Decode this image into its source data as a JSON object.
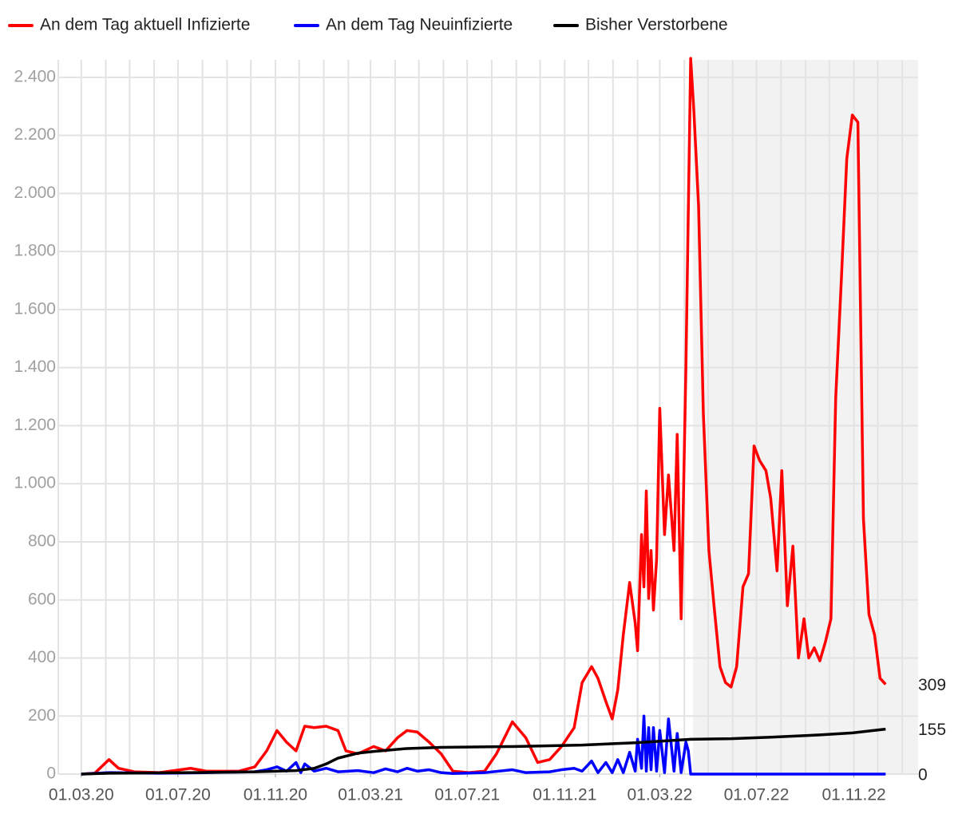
{
  "chart_data": {
    "type": "line",
    "xlim": [
      "2020-02-01",
      "2023-01-21"
    ],
    "ylim": [
      0,
      2460
    ],
    "yticks": [
      0,
      200,
      400,
      600,
      800,
      {
        "value": 1000,
        "label": "1.000"
      },
      {
        "value": 1200,
        "label": "1.200"
      },
      {
        "value": 1400,
        "label": "1.400"
      },
      {
        "value": 1600,
        "label": "1.600"
      },
      {
        "value": 1800,
        "label": "1.800"
      },
      {
        "value": 2000,
        "label": "2.000"
      },
      {
        "value": 2200,
        "label": "2.200"
      },
      {
        "value": 2400,
        "label": "2.400"
      }
    ],
    "xticks": [
      {
        "value": "2020-03-01",
        "label": "01.03.20"
      },
      {
        "value": "2020-07-01",
        "label": "01.07.20"
      },
      {
        "value": "2020-11-01",
        "label": "01.11.20"
      },
      {
        "value": "2021-03-01",
        "label": "01.03.21"
      },
      {
        "value": "2021-07-01",
        "label": "01.07.21"
      },
      {
        "value": "2021-11-01",
        "label": "01.11.21"
      },
      {
        "value": "2022-03-01",
        "label": "01.03.22"
      },
      {
        "value": "2022-07-01",
        "label": "01.07.22"
      },
      {
        "value": "2022-11-01",
        "label": "01.11.22"
      }
    ],
    "x_grid": [
      "2020-02-01",
      "2020-03-01",
      "2020-04-01",
      "2020-05-01",
      "2020-06-01",
      "2020-07-01",
      "2020-08-01",
      "2020-09-01",
      "2020-10-01",
      "2020-11-01",
      "2020-12-01",
      "2021-01-01",
      "2021-02-01",
      "2021-03-01",
      "2021-04-01",
      "2021-05-01",
      "2021-06-01",
      "2021-07-01",
      "2021-08-01",
      "2021-09-01",
      "2021-10-01",
      "2021-11-01",
      "2021-12-01",
      "2022-01-01",
      "2022-02-01",
      "2022-03-01",
      "2022-04-01",
      "2022-05-01",
      "2022-06-01",
      "2022-07-01",
      "2022-08-01",
      "2022-09-01",
      "2022-10-01",
      "2022-11-01",
      "2022-12-01",
      "2023-01-01"
    ],
    "grid": true,
    "shaded_from": "2022-04-12",
    "legend": "top",
    "series": [
      {
        "name": "An dem Tag aktuell Infizierte",
        "color": "#ff0000",
        "x": [
          "2020-03-01",
          "2020-03-18",
          "2020-04-05",
          "2020-04-17",
          "2020-05-07",
          "2020-06-07",
          "2020-07-17",
          "2020-08-06",
          "2020-09-16",
          "2020-10-06",
          "2020-10-21",
          "2020-11-03",
          "2020-11-15",
          "2020-11-27",
          "2020-12-08",
          "2020-12-20",
          "2021-01-04",
          "2021-01-19",
          "2021-01-29",
          "2021-02-13",
          "2021-03-05",
          "2021-03-20",
          "2021-04-04",
          "2021-04-16",
          "2021-04-29",
          "2021-05-14",
          "2021-05-29",
          "2021-06-13",
          "2021-07-03",
          "2021-07-23",
          "2021-08-07",
          "2021-08-27",
          "2021-09-13",
          "2021-09-28",
          "2021-10-13",
          "2021-10-28",
          "2021-11-13",
          "2021-11-23",
          "2021-12-05",
          "2021-12-13",
          "2021-12-23",
          "2021-12-31",
          "2022-01-07",
          "2022-01-14",
          "2022-01-22",
          "2022-01-29",
          "2022-02-01",
          "2022-02-06",
          "2022-02-09",
          "2022-02-12",
          "2022-02-15",
          "2022-02-18",
          "2022-02-21",
          "2022-02-25",
          "2022-03-01",
          "2022-03-07",
          "2022-03-12",
          "2022-03-19",
          "2022-03-23",
          "2022-03-28",
          "2022-04-03",
          "2022-04-09",
          "2022-04-13",
          "2022-04-19",
          "2022-04-25",
          "2022-05-02",
          "2022-05-09",
          "2022-05-16",
          "2022-05-23",
          "2022-05-30",
          "2022-06-06",
          "2022-06-14",
          "2022-06-21",
          "2022-06-28",
          "2022-07-05",
          "2022-07-13",
          "2022-07-19",
          "2022-07-27",
          "2022-08-02",
          "2022-08-09",
          "2022-08-16",
          "2022-08-23",
          "2022-08-30",
          "2022-09-05",
          "2022-09-12",
          "2022-09-19",
          "2022-09-26",
          "2022-10-03",
          "2022-10-09",
          "2022-10-16",
          "2022-10-23",
          "2022-10-30",
          "2022-11-06",
          "2022-11-13",
          "2022-11-20",
          "2022-11-27",
          "2022-12-04",
          "2022-12-11"
        ],
        "values": [
          0,
          3,
          50,
          20,
          8,
          5,
          20,
          10,
          10,
          25,
          80,
          150,
          110,
          80,
          165,
          160,
          165,
          150,
          80,
          70,
          95,
          80,
          125,
          150,
          145,
          110,
          70,
          10,
          5,
          10,
          70,
          180,
          125,
          40,
          50,
          95,
          160,
          315,
          370,
          330,
          250,
          190,
          290,
          480,
          660,
          520,
          425,
          825,
          645,
          975,
          605,
          770,
          565,
          740,
          1260,
          825,
          1030,
          770,
          1170,
          535,
          1405,
          2465,
          2285,
          1955,
          1240,
          770,
          565,
          370,
          315,
          300,
          370,
          645,
          690,
          1130,
          1080,
          1045,
          950,
          700,
          1045,
          580,
          785,
          400,
          535,
          400,
          435,
          390,
          455,
          535,
          1295,
          1695,
          2120,
          2270,
          2245,
          880,
          550,
          480,
          330,
          309
        ]
      },
      {
        "name": "An dem Tag Neuinfizierte",
        "color": "#0000ff",
        "x": [
          "2020-03-01",
          "2020-04-05",
          "2020-06-07",
          "2020-08-06",
          "2020-10-06",
          "2020-10-21",
          "2020-11-03",
          "2020-11-15",
          "2020-11-27",
          "2020-12-03",
          "2020-12-08",
          "2020-12-20",
          "2021-01-04",
          "2021-01-19",
          "2021-02-13",
          "2021-03-05",
          "2021-03-20",
          "2021-04-04",
          "2021-04-16",
          "2021-04-29",
          "2021-05-14",
          "2021-05-29",
          "2021-06-13",
          "2021-07-23",
          "2021-08-27",
          "2021-09-13",
          "2021-10-13",
          "2021-10-28",
          "2021-11-13",
          "2021-11-23",
          "2021-12-05",
          "2021-12-13",
          "2021-12-23",
          "2021-12-31",
          "2022-01-07",
          "2022-01-14",
          "2022-01-22",
          "2022-01-29",
          "2022-02-01",
          "2022-02-06",
          "2022-02-09",
          "2022-02-12",
          "2022-02-15",
          "2022-02-18",
          "2022-02-21",
          "2022-02-25",
          "2022-03-01",
          "2022-03-07",
          "2022-03-12",
          "2022-03-19",
          "2022-03-23",
          "2022-03-28",
          "2022-04-03",
          "2022-04-06",
          "2022-04-09",
          "2022-12-11"
        ],
        "values": [
          0,
          5,
          3,
          5,
          8,
          15,
          25,
          10,
          40,
          5,
          35,
          10,
          20,
          8,
          12,
          5,
          18,
          8,
          20,
          10,
          15,
          5,
          2,
          5,
          15,
          5,
          8,
          15,
          20,
          10,
          45,
          5,
          40,
          5,
          50,
          5,
          75,
          10,
          120,
          20,
          200,
          10,
          160,
          15,
          160,
          10,
          150,
          5,
          190,
          10,
          140,
          5,
          110,
          80,
          0,
          0
        ]
      },
      {
        "name": "Bisher Verstorbene",
        "color": "#000000",
        "x": [
          "2020-03-01",
          "2020-04-05",
          "2020-07-17",
          "2020-10-06",
          "2020-11-27",
          "2020-12-20",
          "2021-01-04",
          "2021-01-19",
          "2021-02-13",
          "2021-03-05",
          "2021-04-16",
          "2021-05-29",
          "2021-08-27",
          "2021-11-23",
          "2022-01-29",
          "2022-03-12",
          "2022-04-09",
          "2022-05-30",
          "2022-07-19",
          "2022-09-19",
          "2022-10-30",
          "2022-12-11"
        ],
        "values": [
          0,
          3,
          5,
          8,
          12,
          20,
          35,
          55,
          72,
          78,
          88,
          92,
          95,
          100,
          108,
          115,
          120,
          122,
          127,
          135,
          142,
          155
        ]
      }
    ]
  }
}
